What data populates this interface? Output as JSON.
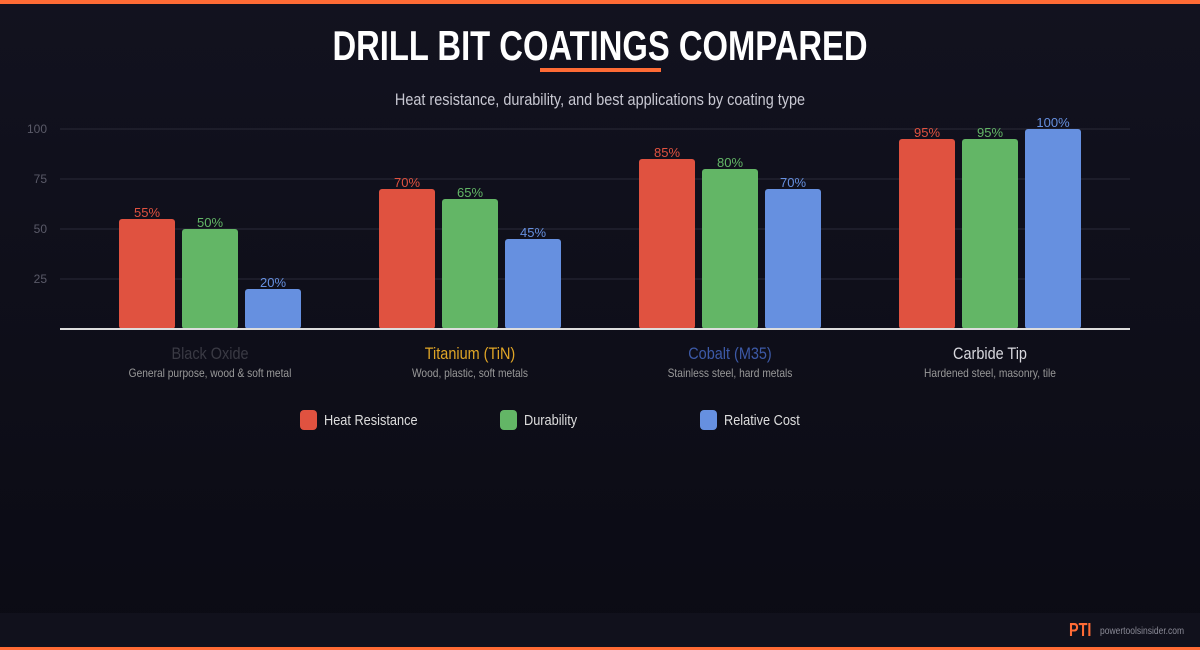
{
  "chart_data": {
    "type": "bar",
    "title": "DRILL BIT COATINGS COMPARED",
    "subtitle": "Heat resistance, durability, and best applications by coating type",
    "categories": [
      {
        "name": "Black Oxide",
        "desc": "General purpose, wood & soft metal",
        "color": "#3a3a44"
      },
      {
        "name": "Titanium (TiN)",
        "desc": "Wood, plastic, soft metals",
        "color": "#e0a526"
      },
      {
        "name": "Cobalt (M35)",
        "desc": "Stainless steel, hard metals",
        "color": "#3d5aa8"
      },
      {
        "name": "Carbide Tip",
        "desc": "Hardened steel, masonry, tile",
        "color": "#d8d8de"
      }
    ],
    "series": [
      {
        "name": "Heat Resistance",
        "color": "#e05240",
        "values": [
          55,
          70,
          85,
          95
        ]
      },
      {
        "name": "Durability",
        "color": "#63b666",
        "values": [
          50,
          65,
          80,
          95
        ]
      },
      {
        "name": "Relative Cost",
        "color": "#6690e0",
        "values": [
          20,
          45,
          70,
          100
        ]
      }
    ],
    "yticks": [
      "25",
      "50",
      "75",
      "100"
    ],
    "ylim": [
      0,
      100
    ],
    "grid": true,
    "legend": "bottom"
  },
  "footer": {
    "logo": "PTI",
    "site": "powertoolsinsider.com"
  }
}
